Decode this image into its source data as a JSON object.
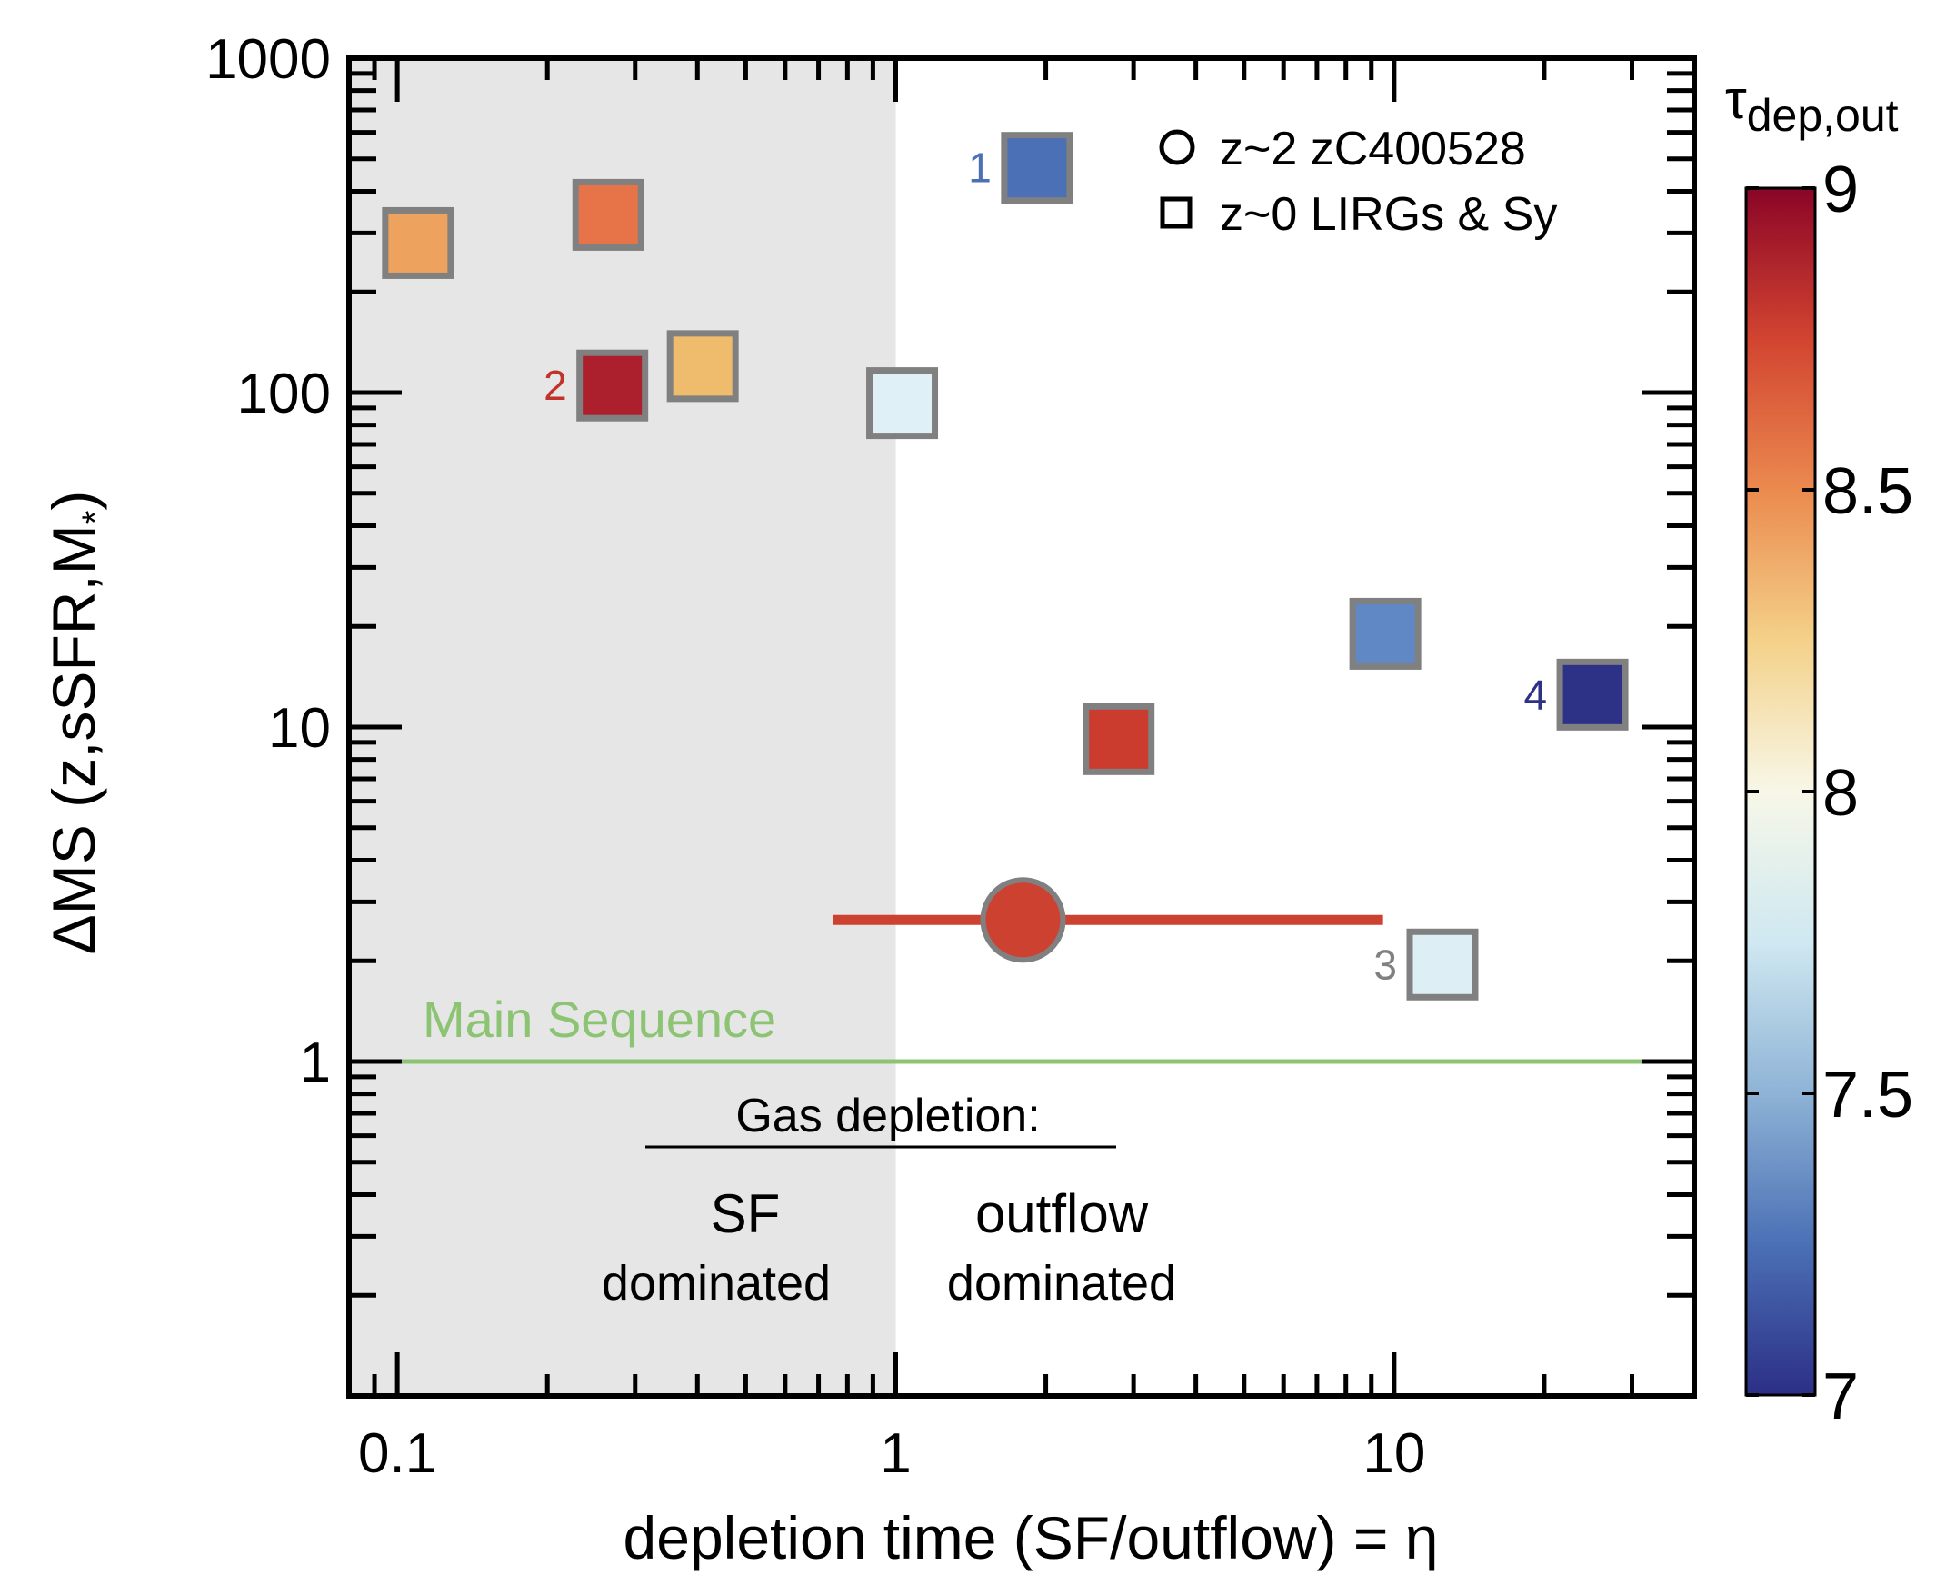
{
  "chart_data": {
    "type": "scatter",
    "x_scale": "log",
    "y_scale": "log",
    "xlim": [
      0.08,
      40
    ],
    "ylim": [
      0.1,
      1000
    ],
    "xlabel": "depletion time (SF/outflow) = η",
    "ylabel": "ΔMS (z,sSFR,M",
    "ylabel_sub": "*",
    "ylabel_close": ")",
    "x_ticks": [
      {
        "value": 0.1,
        "label": "0.1"
      },
      {
        "value": 1,
        "label": "1"
      },
      {
        "value": 10,
        "label": "10"
      }
    ],
    "y_ticks": [
      {
        "value": 1,
        "label": "1"
      },
      {
        "value": 10,
        "label": "10"
      },
      {
        "value": 100,
        "label": "100"
      },
      {
        "value": 1000,
        "label": "1000"
      }
    ],
    "shaded_region": {
      "x_from": 0.08,
      "x_to": 1.0,
      "color": "#e6e6e6"
    },
    "main_sequence": {
      "y": 1,
      "x_from": 0.09,
      "x_to": 40,
      "label": "Main Sequence",
      "color": "#8cc474"
    },
    "colorbar": {
      "title": "τ",
      "title_sub": "dep,out",
      "min": 7,
      "max": 9,
      "ticks": [
        {
          "value": 7,
          "label": "7"
        },
        {
          "value": 7.5,
          "label": "7.5"
        },
        {
          "value": 8,
          "label": "8"
        },
        {
          "value": 8.5,
          "label": "8.5"
        },
        {
          "value": 9,
          "label": "9"
        }
      ],
      "stops": [
        {
          "v": 7.0,
          "c": "#2c2f86"
        },
        {
          "v": 7.25,
          "c": "#4b70b5"
        },
        {
          "v": 7.5,
          "c": "#8eb3d6"
        },
        {
          "v": 7.75,
          "c": "#cfe8f1"
        },
        {
          "v": 8.0,
          "c": "#f7f7e8"
        },
        {
          "v": 8.25,
          "c": "#f4d189"
        },
        {
          "v": 8.5,
          "c": "#eb8a4f"
        },
        {
          "v": 8.75,
          "c": "#d24430"
        },
        {
          "v": 9.0,
          "c": "#8a0527"
        }
      ]
    },
    "legend": [
      {
        "marker": "circle",
        "label": "z~2 zC400528"
      },
      {
        "marker": "square",
        "label": "z~0 LIRGs & Sy"
      }
    ],
    "region_labels": {
      "header": "Gas depletion:",
      "left_big": "SF",
      "left_small": "dominated",
      "right_big": "outflow",
      "right_small": "dominated"
    },
    "series": [
      {
        "name": "z~0 LIRGs & Sy",
        "marker": "square",
        "points": [
          {
            "x": 0.11,
            "y": 280,
            "color": "#eda25e",
            "tau": 8.4
          },
          {
            "x": 0.265,
            "y": 340,
            "color": "#e67448",
            "tau": 8.6
          },
          {
            "x": 0.27,
            "y": 105,
            "color": "#ac1f2c",
            "tau": 8.95,
            "label": "2",
            "label_color": "#c0322a"
          },
          {
            "x": 0.41,
            "y": 120,
            "color": "#efbb6d",
            "tau": 8.3
          },
          {
            "x": 1.03,
            "y": 93,
            "color": "#dff1f7",
            "tau": 7.8
          },
          {
            "x": 1.92,
            "y": 470,
            "color": "#4b70b5",
            "tau": 7.25,
            "label": "1",
            "label_color": "#4b70b5"
          },
          {
            "x": 9.6,
            "y": 19,
            "color": "#5f88c4",
            "tau": 7.35
          },
          {
            "x": 25,
            "y": 12.5,
            "color": "#2e3286",
            "tau": 7.0,
            "label": "4",
            "label_color": "#2e3286"
          },
          {
            "x": 2.8,
            "y": 9.2,
            "color": "#cb3b2e",
            "tau": 8.8
          },
          {
            "x": 12.5,
            "y": 1.95,
            "color": "#ddeff5",
            "tau": 7.8,
            "label": "3",
            "label_color": "#808080"
          }
        ]
      },
      {
        "name": "z~2 zC400528",
        "marker": "circle",
        "points": [
          {
            "x": 1.8,
            "y": 2.65,
            "color": "#cd4130",
            "tau": 8.8,
            "xerr": [
              0.75,
              9.5
            ]
          }
        ]
      }
    ]
  }
}
